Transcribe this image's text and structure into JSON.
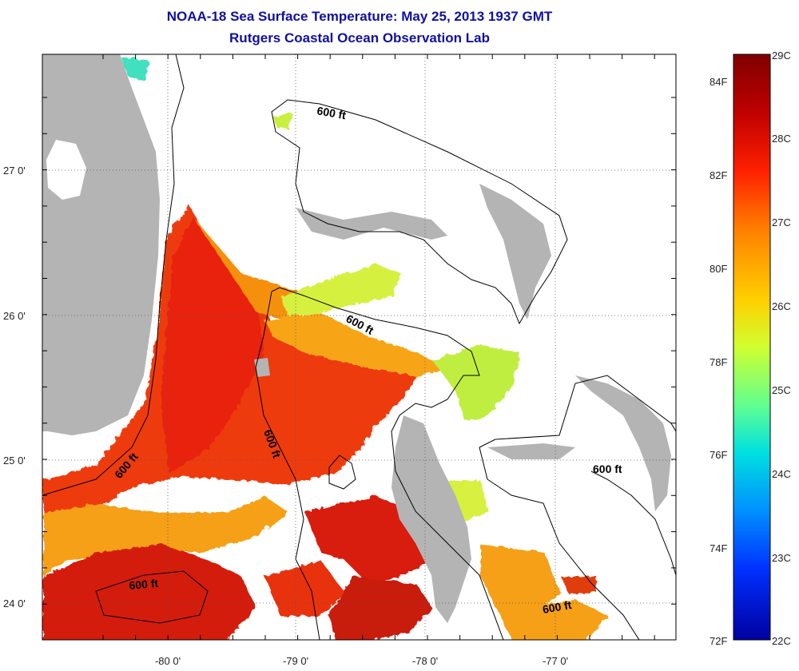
{
  "title": {
    "line1": "NOAA-18 Sea Surface Temperature:  May 25, 2013 1937 GMT",
    "line2": "Rutgers Coastal Ocean Observation Lab"
  },
  "map": {
    "x_ticks": [
      "-80 0'",
      "-79 0'",
      "-78 0'",
      "-77 0'"
    ],
    "y_ticks": [
      "27 0'",
      "26 0'",
      "25 0'",
      "24 0'"
    ],
    "contour_label": "600 ft",
    "land_color": "#b4b4b4",
    "cloud_color": "#ffffff"
  },
  "colorbar": {
    "fahrenheit_labels": [
      "84F",
      "82F",
      "80F",
      "78F",
      "76F",
      "74F",
      "72F"
    ],
    "celsius_labels": [
      "29C",
      "28C",
      "27C",
      "26C",
      "25C",
      "24C",
      "23C",
      "22C"
    ],
    "colormap": [
      "#800000",
      "#c00000",
      "#ff2000",
      "#ff8000",
      "#ffd000",
      "#d0ff30",
      "#60ff90",
      "#00e0e0",
      "#0090ff",
      "#0030ff",
      "#0000a0"
    ]
  }
}
